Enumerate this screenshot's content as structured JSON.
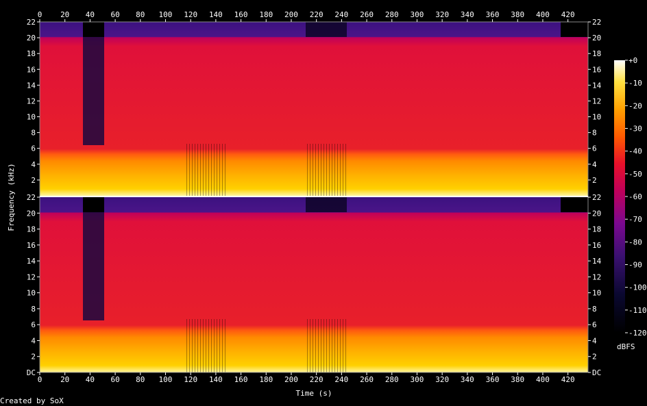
{
  "chart_data": {
    "type": "heatmap",
    "title": "",
    "xlabel": "Time (s)",
    "ylabel": "Frequency (kHz)",
    "x_ticks": [
      0,
      20,
      40,
      60,
      80,
      100,
      120,
      140,
      160,
      180,
      200,
      220,
      240,
      260,
      280,
      300,
      320,
      340,
      360,
      380,
      400,
      420
    ],
    "xlim": [
      0,
      436
    ],
    "y_ticks": [
      "DC",
      "2",
      "4",
      "6",
      "8",
      "10",
      "12",
      "14",
      "16",
      "18",
      "20",
      "22"
    ],
    "top_channel_bottom_label": "2",
    "ylim_khz": [
      0,
      22
    ],
    "colorbar": {
      "label": "dBFS",
      "ticks": [
        "+0",
        "-10",
        "-20",
        "-30",
        "-40",
        "-50",
        "-60",
        "-70",
        "-80",
        "-90",
        "-100",
        "-110",
        "-120"
      ],
      "range": [
        -120,
        0
      ]
    },
    "channels": 2,
    "footer": "Created by SoX",
    "colors": {
      "background": "#000000",
      "high": "#fffff0",
      "upper": "#ffd400",
      "mid_high": "#ff7a00",
      "mid": "#e8102a",
      "mid_low": "#b3006e",
      "low": "#5a1a8c",
      "lower": "#1e0a50",
      "floor": "#000000"
    }
  }
}
